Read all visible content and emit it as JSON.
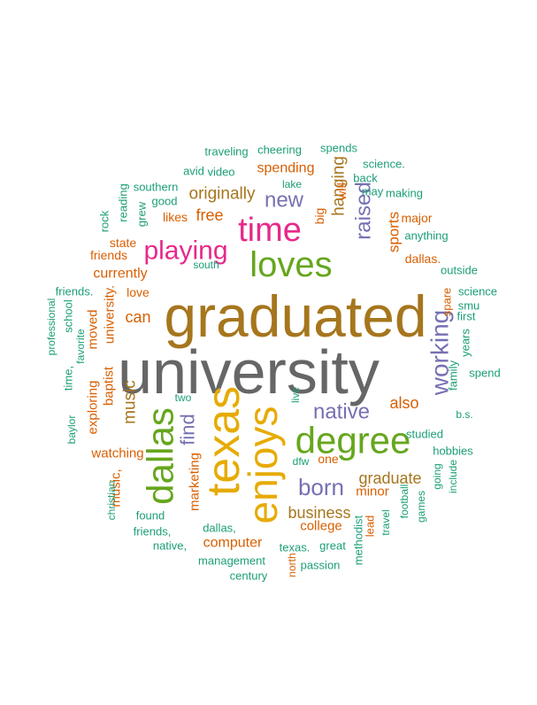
{
  "palette": {
    "teal": "#1b9e77",
    "orange": "#d95f02",
    "purple": "#7570b3",
    "magenta": "#e7298a",
    "green": "#66a61e",
    "gold": "#e6ab02",
    "brown": "#a6761d",
    "gray": "#666666"
  },
  "words": [
    {
      "text": "university",
      "color": "gray"
    },
    {
      "text": "graduated",
      "color": "brown"
    },
    {
      "text": "texas",
      "color": "gold"
    },
    {
      "text": "enjoys",
      "color": "gold"
    },
    {
      "text": "degree",
      "color": "green"
    },
    {
      "text": "dallas",
      "color": "green"
    },
    {
      "text": "loves",
      "color": "green"
    },
    {
      "text": "time",
      "color": "magenta"
    },
    {
      "text": "playing",
      "color": "magenta"
    },
    {
      "text": "working",
      "color": "purple"
    },
    {
      "text": "born",
      "color": "purple"
    },
    {
      "text": "native",
      "color": "purple"
    },
    {
      "text": "new",
      "color": "purple"
    },
    {
      "text": "raised",
      "color": "purple"
    },
    {
      "text": "find",
      "color": "purple"
    },
    {
      "text": "music",
      "color": "brown"
    },
    {
      "text": "business",
      "color": "brown"
    },
    {
      "text": "graduate",
      "color": "brown"
    },
    {
      "text": "originally",
      "color": "brown"
    },
    {
      "text": "hanging",
      "color": "brown"
    },
    {
      "text": "also",
      "color": "orange"
    },
    {
      "text": "free",
      "color": "orange"
    },
    {
      "text": "can",
      "color": "orange"
    },
    {
      "text": "spending",
      "color": "orange"
    },
    {
      "text": "sports",
      "color": "orange"
    },
    {
      "text": "college",
      "color": "orange"
    },
    {
      "text": "minor",
      "color": "orange"
    },
    {
      "text": "computer",
      "color": "orange"
    },
    {
      "text": "marketing",
      "color": "orange"
    },
    {
      "text": "watching",
      "color": "orange"
    },
    {
      "text": "exploring",
      "color": "orange"
    },
    {
      "text": "baptist",
      "color": "orange"
    },
    {
      "text": "moved",
      "color": "orange"
    },
    {
      "text": "currently",
      "color": "orange"
    },
    {
      "text": "university.",
      "color": "orange"
    },
    {
      "text": "music,",
      "color": "orange"
    },
    {
      "text": "friends",
      "color": "orange"
    },
    {
      "text": "love",
      "color": "orange"
    },
    {
      "text": "likes",
      "color": "orange"
    },
    {
      "text": "state",
      "color": "orange"
    },
    {
      "text": "dallas.",
      "color": "orange"
    },
    {
      "text": "major",
      "color": "orange"
    },
    {
      "text": "big",
      "color": "orange"
    },
    {
      "text": "will",
      "color": "orange"
    },
    {
      "text": "one",
      "color": "orange"
    },
    {
      "text": "spare",
      "color": "orange"
    },
    {
      "text": "lead",
      "color": "orange"
    },
    {
      "text": "north",
      "color": "orange"
    },
    {
      "text": "traveling",
      "color": "teal"
    },
    {
      "text": "cheering",
      "color": "teal"
    },
    {
      "text": "spends",
      "color": "teal"
    },
    {
      "text": "avid",
      "color": "teal"
    },
    {
      "text": "video",
      "color": "teal"
    },
    {
      "text": "science.",
      "color": "teal"
    },
    {
      "text": "back",
      "color": "teal"
    },
    {
      "text": "lake",
      "color": "teal"
    },
    {
      "text": "may",
      "color": "teal"
    },
    {
      "text": "making",
      "color": "teal"
    },
    {
      "text": "southern",
      "color": "teal"
    },
    {
      "text": "reading",
      "color": "teal"
    },
    {
      "text": "good",
      "color": "teal"
    },
    {
      "text": "grew",
      "color": "teal"
    },
    {
      "text": "rock",
      "color": "teal"
    },
    {
      "text": "anything",
      "color": "teal"
    },
    {
      "text": "south",
      "color": "teal"
    },
    {
      "text": "outside",
      "color": "teal"
    },
    {
      "text": "friends.",
      "color": "teal"
    },
    {
      "text": "science",
      "color": "teal"
    },
    {
      "text": "smu",
      "color": "teal"
    },
    {
      "text": "first",
      "color": "teal"
    },
    {
      "text": "school",
      "color": "teal"
    },
    {
      "text": "professional",
      "color": "teal"
    },
    {
      "text": "favorite",
      "color": "teal"
    },
    {
      "text": "years",
      "color": "teal"
    },
    {
      "text": "spend",
      "color": "teal"
    },
    {
      "text": "family",
      "color": "teal"
    },
    {
      "text": "time,",
      "color": "teal"
    },
    {
      "text": "two",
      "color": "teal"
    },
    {
      "text": "live",
      "color": "teal"
    },
    {
      "text": "b.s.",
      "color": "teal"
    },
    {
      "text": "baylor",
      "color": "teal"
    },
    {
      "text": "studied",
      "color": "teal"
    },
    {
      "text": "hobbies",
      "color": "teal"
    },
    {
      "text": "dfw",
      "color": "teal"
    },
    {
      "text": "christian",
      "color": "teal"
    },
    {
      "text": "going",
      "color": "teal"
    },
    {
      "text": "include",
      "color": "teal"
    },
    {
      "text": "found",
      "color": "teal"
    },
    {
      "text": "dallas,",
      "color": "teal"
    },
    {
      "text": "methodist",
      "color": "teal"
    },
    {
      "text": "travel",
      "color": "teal"
    },
    {
      "text": "football",
      "color": "teal"
    },
    {
      "text": "games",
      "color": "teal"
    },
    {
      "text": "friends,",
      "color": "teal"
    },
    {
      "text": "texas.",
      "color": "teal"
    },
    {
      "text": "great",
      "color": "teal"
    },
    {
      "text": "native,",
      "color": "teal"
    },
    {
      "text": "management",
      "color": "teal"
    },
    {
      "text": "passion",
      "color": "teal"
    },
    {
      "text": "century",
      "color": "teal"
    }
  ]
}
